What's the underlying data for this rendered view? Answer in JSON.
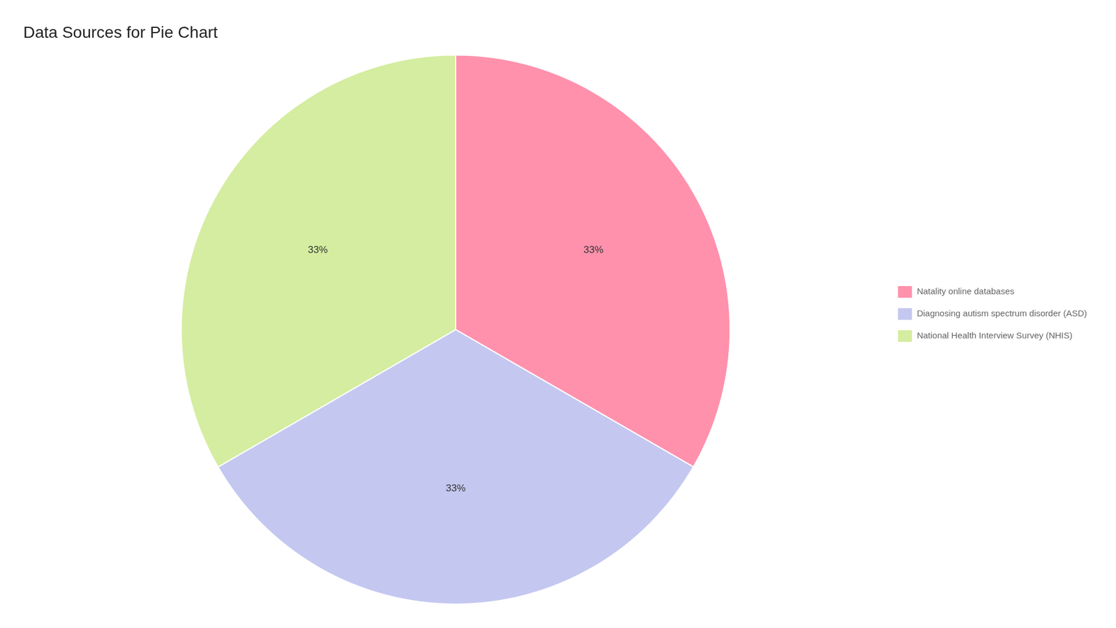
{
  "chart_data": {
    "type": "pie",
    "title": "Data Sources for Pie Chart",
    "categories": [
      "Natality online databases",
      "Diagnosing autism spectrum disorder (ASD)",
      "National Health Interview Survey (NHIS)"
    ],
    "values": [
      33.33,
      33.33,
      33.34
    ],
    "value_labels": [
      "33%",
      "33%",
      "33%"
    ],
    "colors": [
      "#FF91AC",
      "#C4C8F0",
      "#D4EDA0"
    ],
    "data_labels": true,
    "legend": "right"
  }
}
